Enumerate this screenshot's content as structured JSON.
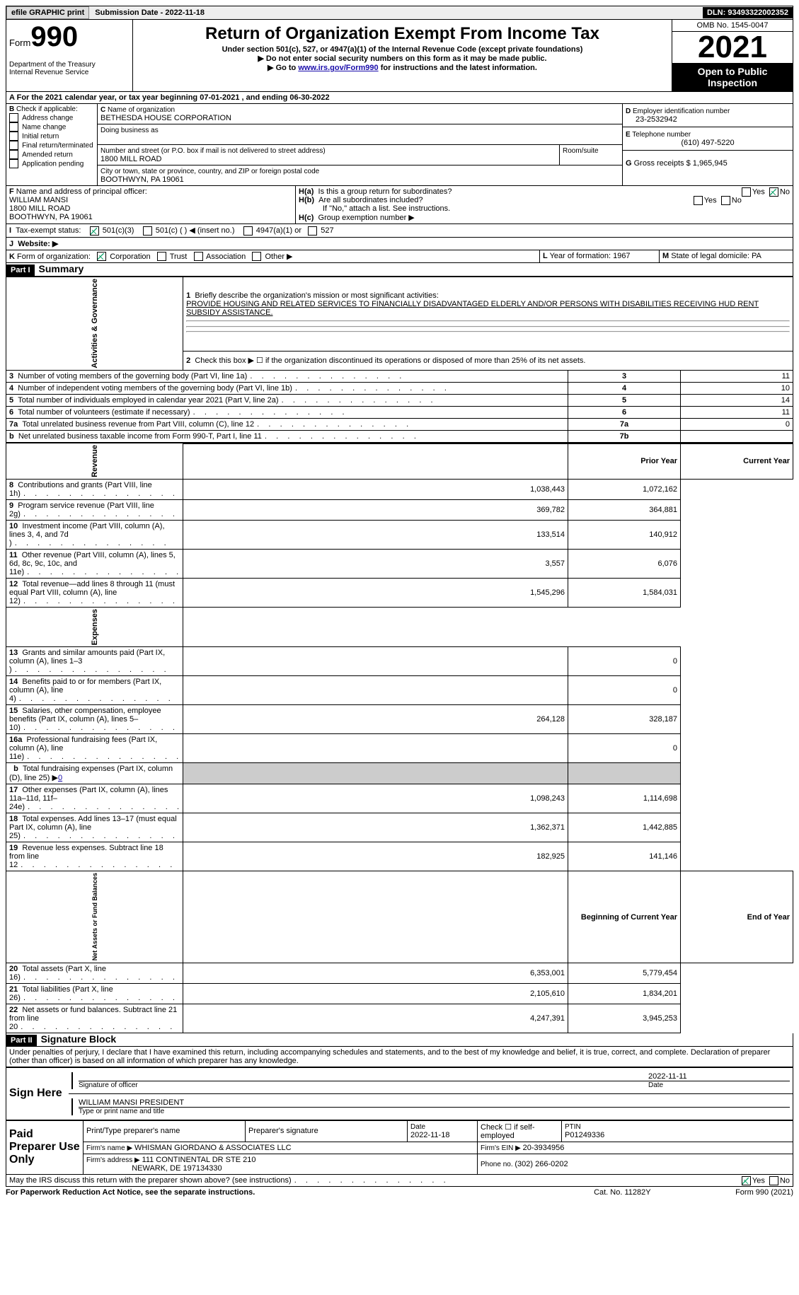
{
  "topbar": {
    "efile": "efile GRAPHIC print",
    "subdate_lbl": "Submission Date - ",
    "subdate": "2022-11-18",
    "dln_lbl": "DLN: ",
    "dln": "93493322002352"
  },
  "header": {
    "form_word": "Form",
    "form_num": "990",
    "title": "Return of Organization Exempt From Income Tax",
    "sub1": "Under section 501(c), 527, or 4947(a)(1) of the Internal Revenue Code (except private foundations)",
    "sub2": "▶ Do not enter social security numbers on this form as it may be made public.",
    "sub3_pre": "▶ Go to ",
    "sub3_link": "www.irs.gov/Form990",
    "sub3_post": " for instructions and the latest information.",
    "dept": "Department of the Treasury",
    "irs": "Internal Revenue Service",
    "omb": "OMB No. 1545-0047",
    "year": "2021",
    "opi": "Open to Public Inspection"
  },
  "A": {
    "text": "For the 2021 calendar year, or tax year beginning ",
    "begin": "07-01-2021",
    "mid": " , and ending ",
    "end": "06-30-2022"
  },
  "B": {
    "lbl": "Check if applicable:",
    "opts": [
      "Address change",
      "Name change",
      "Initial return",
      "Final return/terminated",
      "Amended return",
      "Application pending"
    ]
  },
  "C": {
    "name_lbl": "Name of organization",
    "name": "BETHESDA HOUSE CORPORATION",
    "dba_lbl": "Doing business as",
    "dba": "",
    "addr_lbl": "Number and street (or P.O. box if mail is not delivered to street address)",
    "room_lbl": "Room/suite",
    "addr": "1800 MILL ROAD",
    "city_lbl": "City or town, state or province, country, and ZIP or foreign postal code",
    "city": "BOOTHWYN, PA  19061"
  },
  "D": {
    "lbl": "Employer identification number",
    "val": "23-2532942"
  },
  "E": {
    "lbl": "Telephone number",
    "val": "(610) 497-5220"
  },
  "G": {
    "lbl": "Gross receipts $ ",
    "val": "1,965,945"
  },
  "F": {
    "lbl": "Name and address of principal officer:",
    "name": "WILLIAM MANSI",
    "addr1": "1800 MILL ROAD",
    "addr2": "BOOTHWYN, PA  19061"
  },
  "H": {
    "a": "Is this a group return for subordinates?",
    "b": "Are all subordinates included?",
    "b2": "If \"No,\" attach a list. See instructions.",
    "c": "Group exemption number ▶",
    "yes": "Yes",
    "no": "No"
  },
  "I": {
    "lbl": "Tax-exempt status:",
    "o1": "501(c)(3)",
    "o2": "501(c) (  ) ◀ (insert no.)",
    "o3": "4947(a)(1) or",
    "o4": "527"
  },
  "J": {
    "lbl": "Website: ▶"
  },
  "K": {
    "lbl": "Form of organization:",
    "o1": "Corporation",
    "o2": "Trust",
    "o3": "Association",
    "o4": "Other ▶"
  },
  "L": {
    "lbl": "Year of formation: ",
    "val": "1967"
  },
  "M": {
    "lbl": "State of legal domicile: ",
    "val": "PA"
  },
  "part1": {
    "tag": "Part I",
    "title": "Summary"
  },
  "summary": {
    "q1": "Briefly describe the organization's mission or most significant activities:",
    "mission": "PROVIDE HOUSING AND RELATED SERVICES TO FINANCIALLY DISADVANTAGED ELDERLY AND/OR PERSONS WITH DISABILITIES RECEIVING HUD RENT SUBSIDY ASSISTANCE.",
    "q2": "Check this box ▶ ☐ if the organization discontinued its operations or disposed of more than 25% of its net assets.",
    "rows_ag": [
      {
        "n": "3",
        "t": "Number of voting members of the governing body (Part VI, line 1a)",
        "box": "3",
        "v": "11"
      },
      {
        "n": "4",
        "t": "Number of independent voting members of the governing body (Part VI, line 1b)",
        "box": "4",
        "v": "10"
      },
      {
        "n": "5",
        "t": "Total number of individuals employed in calendar year 2021 (Part V, line 2a)",
        "box": "5",
        "v": "14"
      },
      {
        "n": "6",
        "t": "Total number of volunteers (estimate if necessary)",
        "box": "6",
        "v": "11"
      },
      {
        "n": "7a",
        "t": "Total unrelated business revenue from Part VIII, column (C), line 12",
        "box": "7a",
        "v": "0"
      },
      {
        "n": "b",
        "t": "Net unrelated business taxable income from Form 990-T, Part I, line 11",
        "box": "7b",
        "v": ""
      }
    ],
    "col_prior": "Prior Year",
    "col_cur": "Current Year",
    "rev": [
      {
        "n": "8",
        "t": "Contributions and grants (Part VIII, line 1h)",
        "p": "1,038,443",
        "c": "1,072,162"
      },
      {
        "n": "9",
        "t": "Program service revenue (Part VIII, line 2g)",
        "p": "369,782",
        "c": "364,881"
      },
      {
        "n": "10",
        "t": "Investment income (Part VIII, column (A), lines 3, 4, and 7d )",
        "p": "133,514",
        "c": "140,912"
      },
      {
        "n": "11",
        "t": "Other revenue (Part VIII, column (A), lines 5, 6d, 8c, 9c, 10c, and 11e)",
        "p": "3,557",
        "c": "6,076"
      },
      {
        "n": "12",
        "t": "Total revenue—add lines 8 through 11 (must equal Part VIII, column (A), line 12)",
        "p": "1,545,296",
        "c": "1,584,031"
      }
    ],
    "exp": [
      {
        "n": "13",
        "t": "Grants and similar amounts paid (Part IX, column (A), lines 1–3 )",
        "p": "",
        "c": "0"
      },
      {
        "n": "14",
        "t": "Benefits paid to or for members (Part IX, column (A), line 4)",
        "p": "",
        "c": "0"
      },
      {
        "n": "15",
        "t": "Salaries, other compensation, employee benefits (Part IX, column (A), lines 5–10)",
        "p": "264,128",
        "c": "328,187"
      },
      {
        "n": "16a",
        "t": "Professional fundraising fees (Part IX, column (A), line 11e)",
        "p": "",
        "c": "0"
      },
      {
        "n": "b",
        "t": "Total fundraising expenses (Part IX, column (D), line 25) ▶",
        "fval": "0",
        "p": "gray",
        "c": "gray"
      },
      {
        "n": "17",
        "t": "Other expenses (Part IX, column (A), lines 11a–11d, 11f–24e)",
        "p": "1,098,243",
        "c": "1,114,698"
      },
      {
        "n": "18",
        "t": "Total expenses. Add lines 13–17 (must equal Part IX, column (A), line 25)",
        "p": "1,362,371",
        "c": "1,442,885"
      },
      {
        "n": "19",
        "t": "Revenue less expenses. Subtract line 18 from line 12",
        "p": "182,925",
        "c": "141,146"
      }
    ],
    "col_beg": "Beginning of Current Year",
    "col_end": "End of Year",
    "na": [
      {
        "n": "20",
        "t": "Total assets (Part X, line 16)",
        "p": "6,353,001",
        "c": "5,779,454"
      },
      {
        "n": "21",
        "t": "Total liabilities (Part X, line 26)",
        "p": "2,105,610",
        "c": "1,834,201"
      },
      {
        "n": "22",
        "t": "Net assets or fund balances. Subtract line 21 from line 20",
        "p": "4,247,391",
        "c": "3,945,253"
      }
    ],
    "side_ag": "Activities & Governance",
    "side_rev": "Revenue",
    "side_exp": "Expenses",
    "side_na": "Net Assets or Fund Balances"
  },
  "part2": {
    "tag": "Part II",
    "title": "Signature Block"
  },
  "sigblock": {
    "decl": "Under penalties of perjury, I declare that I have examined this return, including accompanying schedules and statements, and to the best of my knowledge and belief, it is true, correct, and complete. Declaration of preparer (other than officer) is based on all information of which preparer has any knowledge.",
    "sign_here": "Sign Here",
    "sig_officer": "Signature of officer",
    "date": "Date",
    "sig_date": "2022-11-11",
    "name_title": "WILLIAM MANSI  PRESIDENT",
    "type_name": "Type or print name and title",
    "ppu": "Paid Preparer Use Only",
    "prep_name_lbl": "Print/Type preparer's name",
    "prep_sig_lbl": "Preparer's signature",
    "prep_date_lbl": "Date",
    "prep_date": "2022-11-18",
    "check_self": "Check ☐ if self-employed",
    "ptin_lbl": "PTIN",
    "ptin": "P01249336",
    "firm_name_lbl": "Firm's name   ▶ ",
    "firm_name": "WHISMAN GIORDANO & ASSOCIATES LLC",
    "firm_ein_lbl": "Firm's EIN ▶ ",
    "firm_ein": "20-3934956",
    "firm_addr_lbl": "Firm's address ▶ ",
    "firm_addr1": "111 CONTINENTAL DR STE 210",
    "firm_addr2": "NEWARK, DE  197134330",
    "phone_lbl": "Phone no. ",
    "phone": "(302) 266-0202",
    "may_irs": "May the IRS discuss this return with the preparer shown above? (see instructions)"
  },
  "footer": {
    "pra": "For Paperwork Reduction Act Notice, see the separate instructions.",
    "cat": "Cat. No. 11282Y",
    "form": "Form 990 (2021)"
  },
  "colors": {
    "link": "#1a0dab",
    "black": "#000000",
    "green": "#2a7e3b"
  }
}
